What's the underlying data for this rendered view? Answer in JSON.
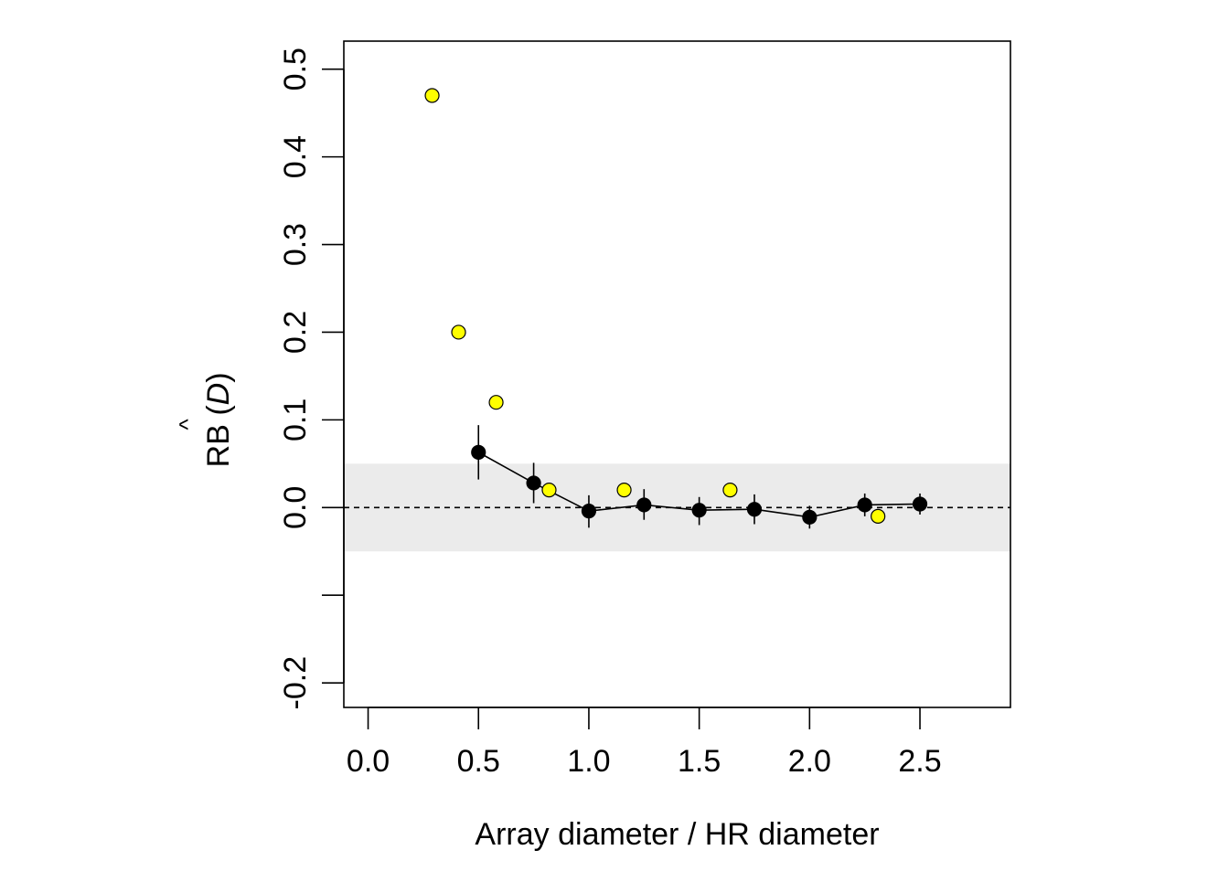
{
  "chart_data": {
    "type": "scatter",
    "title": "",
    "xlabel": "Array diameter / HR diameter",
    "ylabel_prefix": "RB (",
    "ylabel_estimator": "D",
    "ylabel_suffix": ")",
    "xlim": [
      -0.11,
      2.91
    ],
    "ylim": [
      -0.228,
      0.532
    ],
    "x_ticks": [
      0.0,
      0.5,
      1.0,
      1.5,
      2.0,
      2.5
    ],
    "x_tick_labels": [
      "0.0",
      "0.5",
      "1.0",
      "1.5",
      "2.0",
      "2.5"
    ],
    "y_ticks": [
      -0.2,
      -0.1,
      0.0,
      0.1,
      0.2,
      0.3,
      0.4,
      0.5
    ],
    "y_tick_labels": [
      "-0.2",
      "",
      "0.0",
      "0.1",
      "0.2",
      "0.3",
      "0.4",
      "0.5"
    ],
    "grid": false,
    "shaded_band": [
      -0.05,
      0.05
    ],
    "reference_line": 0.0,
    "series": [
      {
        "style": "black points with vertical error bars, connected by line",
        "color": "#000000",
        "x": [
          0.5,
          0.75,
          1.0,
          1.25,
          1.5,
          1.75,
          2.0,
          2.25,
          2.5
        ],
        "y": [
          0.063,
          0.028,
          -0.004,
          0.003,
          -0.003,
          -0.002,
          -0.011,
          0.003,
          0.004
        ],
        "y_low": [
          0.032,
          0.005,
          -0.023,
          -0.014,
          -0.02,
          -0.019,
          -0.024,
          -0.01,
          -0.008
        ],
        "y_high": [
          0.094,
          0.051,
          0.014,
          0.021,
          0.012,
          0.015,
          0.002,
          0.016,
          0.016
        ]
      },
      {
        "style": "yellow points",
        "color": "#ffff00",
        "x": [
          0.29,
          0.41,
          0.58,
          0.82,
          1.16,
          1.64,
          2.31
        ],
        "y": [
          0.47,
          0.2,
          0.12,
          0.02,
          0.02,
          0.02,
          -0.01
        ]
      }
    ]
  }
}
